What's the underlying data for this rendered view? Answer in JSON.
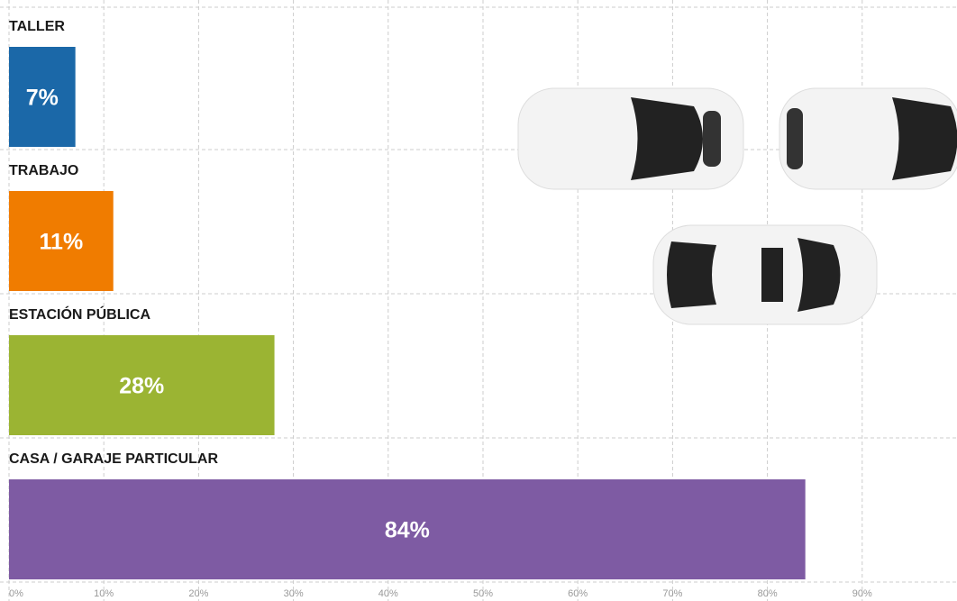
{
  "chart_data": {
    "type": "bar",
    "orientation": "horizontal",
    "categories": [
      "TALLER",
      "TRABAJO",
      "ESTACIÓN PÚBLICA",
      "CASA / GARAJE PARTICULAR"
    ],
    "values": [
      7,
      11,
      28,
      84
    ],
    "value_labels": [
      "7%",
      "11%",
      "28%",
      "84%"
    ],
    "colors": [
      "#1b68a8",
      "#f07c00",
      "#9bb433",
      "#7e5ba3"
    ],
    "xlim": [
      0,
      100
    ],
    "xticks": [
      {
        "value": 0,
        "label": "0%"
      },
      {
        "value": 10,
        "label": "10%"
      },
      {
        "value": 20,
        "label": "20%"
      },
      {
        "value": 30,
        "label": "30%"
      },
      {
        "value": 40,
        "label": "40%"
      },
      {
        "value": 50,
        "label": "50%"
      },
      {
        "value": 60,
        "label": "60%"
      },
      {
        "value": 70,
        "label": "70%"
      },
      {
        "value": 80,
        "label": "80%"
      },
      {
        "value": 90,
        "label": "90%"
      }
    ],
    "grid": true
  }
}
